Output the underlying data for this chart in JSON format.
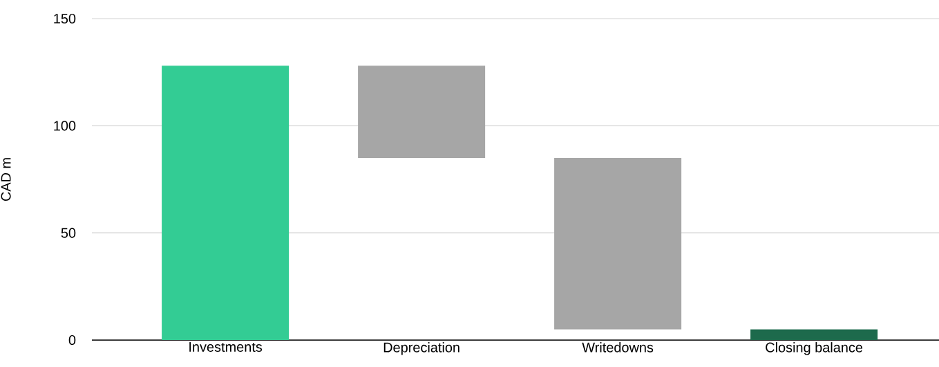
{
  "chart_data": {
    "type": "bar",
    "ylabel": "CAD m",
    "categories": [
      "Investments",
      "Depreciation",
      "Writedowns",
      "Closing balance"
    ],
    "values": [
      128,
      -43,
      -80,
      5
    ],
    "base": [
      0,
      128,
      85,
      0
    ],
    "colors": [
      "#33cc94",
      "#a6a6a6",
      "#a6a6a6",
      "#1d6a4c"
    ],
    "ylim": [
      0,
      150
    ],
    "yticks": [
      0,
      50,
      100,
      150
    ],
    "grid": "y"
  }
}
